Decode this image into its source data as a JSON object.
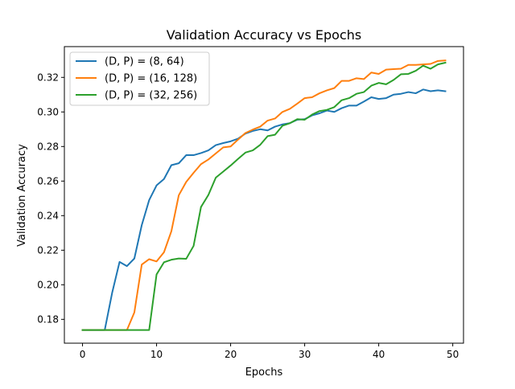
{
  "chart_data": {
    "type": "line",
    "title": "Validation Accuracy vs Epochs",
    "xlabel": "Epochs",
    "ylabel": "Validation Accuracy",
    "xlim": [
      -2.45,
      51.45
    ],
    "ylim": [
      0.1662,
      0.3378
    ],
    "xticks": [
      0,
      10,
      20,
      30,
      40,
      50
    ],
    "xtick_labels": [
      "0",
      "10",
      "20",
      "30",
      "40",
      "50"
    ],
    "yticks": [
      0.18,
      0.2,
      0.22,
      0.24,
      0.26,
      0.28,
      0.3,
      0.32
    ],
    "ytick_labels": [
      "0.18",
      "0.20",
      "0.22",
      "0.24",
      "0.26",
      "0.28",
      "0.30",
      "0.32"
    ],
    "grid": false,
    "legend_position": "top-left",
    "x": [
      0,
      1,
      2,
      3,
      4,
      5,
      6,
      7,
      8,
      9,
      10,
      11,
      12,
      13,
      14,
      15,
      16,
      17,
      18,
      19,
      20,
      21,
      22,
      23,
      24,
      25,
      26,
      27,
      28,
      29,
      30,
      31,
      32,
      33,
      34,
      35,
      36,
      37,
      38,
      39,
      40,
      41,
      42,
      43,
      44,
      45,
      46,
      47,
      48,
      49
    ],
    "series": [
      {
        "name": "(D, P) = (8, 64)",
        "color": "#1f77b4",
        "values": [
          0.1738,
          0.1738,
          0.1738,
          0.1738,
          0.1953,
          0.2132,
          0.2108,
          0.2152,
          0.2345,
          0.249,
          0.2575,
          0.2612,
          0.2692,
          0.2703,
          0.275,
          0.275,
          0.2762,
          0.2778,
          0.2808,
          0.282,
          0.283,
          0.2845,
          0.2875,
          0.289,
          0.29,
          0.2893,
          0.2915,
          0.2928,
          0.2935,
          0.2955,
          0.2958,
          0.298,
          0.2992,
          0.3008,
          0.3,
          0.3022,
          0.3037,
          0.3037,
          0.306,
          0.3085,
          0.3075,
          0.308,
          0.31,
          0.3105,
          0.3115,
          0.3108,
          0.313,
          0.312,
          0.3125,
          0.312
        ]
      },
      {
        "name": "(D, P) = (16, 128)",
        "color": "#ff7f0e",
        "values": [
          0.1738,
          0.1738,
          0.1738,
          0.1738,
          0.1738,
          0.1738,
          0.1738,
          0.184,
          0.2117,
          0.2148,
          0.2135,
          0.2188,
          0.231,
          0.2518,
          0.2595,
          0.2648,
          0.2698,
          0.2725,
          0.276,
          0.2795,
          0.28,
          0.284,
          0.2878,
          0.2898,
          0.2915,
          0.295,
          0.2962,
          0.3,
          0.3018,
          0.3048,
          0.308,
          0.3085,
          0.3108,
          0.3125,
          0.3138,
          0.318,
          0.318,
          0.3195,
          0.319,
          0.3228,
          0.322,
          0.3245,
          0.3248,
          0.325,
          0.3272,
          0.3272,
          0.3275,
          0.3278,
          0.3295,
          0.3298
        ]
      },
      {
        "name": "(D, P) = (32, 256)",
        "color": "#2ca02c",
        "values": [
          0.1738,
          0.1738,
          0.1738,
          0.1738,
          0.1738,
          0.1738,
          0.1738,
          0.1738,
          0.1738,
          0.1738,
          0.206,
          0.213,
          0.2145,
          0.2152,
          0.215,
          0.2225,
          0.245,
          0.252,
          0.262,
          0.2655,
          0.269,
          0.2728,
          0.2765,
          0.2778,
          0.281,
          0.286,
          0.2868,
          0.292,
          0.2935,
          0.2958,
          0.2955,
          0.2985,
          0.3005,
          0.3012,
          0.3028,
          0.3068,
          0.308,
          0.3105,
          0.3115,
          0.3152,
          0.3168,
          0.316,
          0.3185,
          0.3218,
          0.322,
          0.3238,
          0.3268,
          0.325,
          0.3275,
          0.3285
        ]
      }
    ]
  }
}
